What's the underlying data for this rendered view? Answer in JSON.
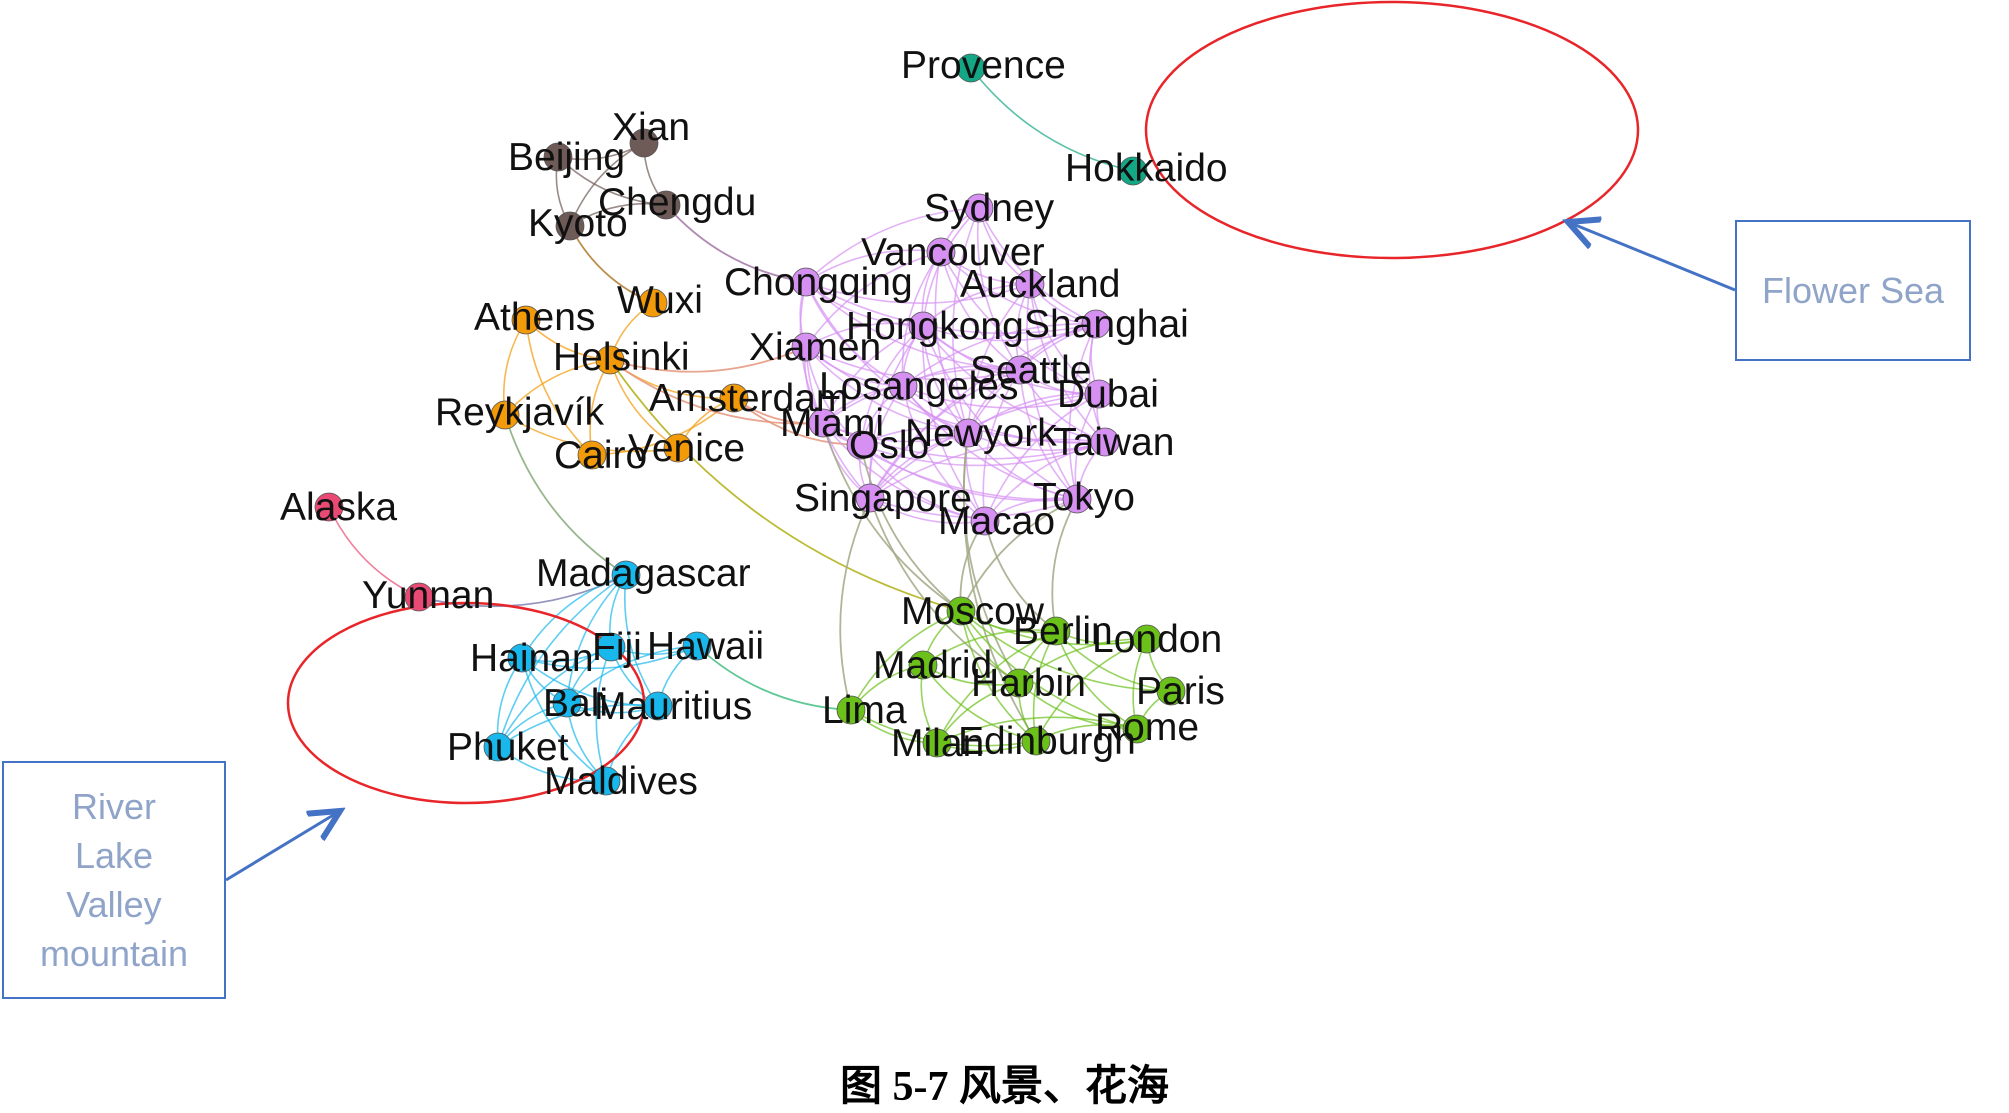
{
  "colors": {
    "cluster_brown": "#6E5A56",
    "cluster_orange": "#F29A07",
    "cluster_purple": "#D690F2",
    "cluster_teal": "#14A785",
    "cluster_pink": "#E84A74",
    "cluster_cyan": "#19B8EC",
    "cluster_green": "#6BC11A",
    "highlight_ellipse": "#E8262A",
    "callout": "#4472C4",
    "callout_text": "#8FA4C8"
  },
  "nodes": [
    {
      "id": "Beijing",
      "label": "Beijing",
      "cluster": "brown"
    },
    {
      "id": "Xian",
      "label": "Xian",
      "cluster": "brown"
    },
    {
      "id": "Chengdu",
      "label": "Chengdu",
      "cluster": "brown"
    },
    {
      "id": "Kyoto",
      "label": "Kyoto",
      "cluster": "brown"
    },
    {
      "id": "Wuxi",
      "label": "Wuxi",
      "cluster": "orange"
    },
    {
      "id": "Athens",
      "label": "Athens",
      "cluster": "orange"
    },
    {
      "id": "Helsinki",
      "label": "Helsinki",
      "cluster": "orange"
    },
    {
      "id": "Amsterdam",
      "label": "Amsterdam",
      "cluster": "orange"
    },
    {
      "id": "Reykjavik",
      "label": "Reykjavík",
      "cluster": "orange"
    },
    {
      "id": "Cairo",
      "label": "Cairo",
      "cluster": "orange"
    },
    {
      "id": "Venice",
      "label": "Venice",
      "cluster": "orange"
    },
    {
      "id": "Provence",
      "label": "Provence",
      "cluster": "teal"
    },
    {
      "id": "Hokkaido",
      "label": "Hokkaido",
      "cluster": "teal"
    },
    {
      "id": "Sydney",
      "label": "Sydney",
      "cluster": "purple"
    },
    {
      "id": "Vancouver",
      "label": "Vancouver",
      "cluster": "purple"
    },
    {
      "id": "Chongqing",
      "label": "Chongqing",
      "cluster": "purple"
    },
    {
      "id": "Auckland",
      "label": "Auckland",
      "cluster": "purple"
    },
    {
      "id": "Hongkong",
      "label": "Hongkong",
      "cluster": "purple"
    },
    {
      "id": "Shanghai",
      "label": "Shanghai",
      "cluster": "purple"
    },
    {
      "id": "Xiamen",
      "label": "Xiamen",
      "cluster": "purple"
    },
    {
      "id": "Seattle",
      "label": "Seattle",
      "cluster": "purple"
    },
    {
      "id": "Losangeles",
      "label": "Losangeles",
      "cluster": "purple"
    },
    {
      "id": "Dubai",
      "label": "Dubai",
      "cluster": "purple"
    },
    {
      "id": "Miami",
      "label": "Miami",
      "cluster": "purple"
    },
    {
      "id": "Newyork",
      "label": "Newyork",
      "cluster": "purple"
    },
    {
      "id": "Oslo",
      "label": "Oslo",
      "cluster": "purple"
    },
    {
      "id": "Taiwan",
      "label": "Taiwan",
      "cluster": "purple"
    },
    {
      "id": "Singapore",
      "label": "Singapore",
      "cluster": "purple"
    },
    {
      "id": "Tokyo",
      "label": "Tokyo",
      "cluster": "purple"
    },
    {
      "id": "Macao",
      "label": "Macao",
      "cluster": "purple"
    },
    {
      "id": "Alaska",
      "label": "Alaska",
      "cluster": "pink"
    },
    {
      "id": "Yunnan",
      "label": "Yunnan",
      "cluster": "pink"
    },
    {
      "id": "Madagascar",
      "label": "Madagascar",
      "cluster": "cyan"
    },
    {
      "id": "Hainan",
      "label": "Hainan",
      "cluster": "cyan"
    },
    {
      "id": "Fiji",
      "label": "Fiji",
      "cluster": "cyan"
    },
    {
      "id": "Hawaii",
      "label": "Hawaii",
      "cluster": "cyan"
    },
    {
      "id": "Bali",
      "label": "Bali",
      "cluster": "cyan"
    },
    {
      "id": "Mauritius",
      "label": "Mauritius",
      "cluster": "cyan"
    },
    {
      "id": "Phuket",
      "label": "Phuket",
      "cluster": "cyan"
    },
    {
      "id": "Maldives",
      "label": "Maldives",
      "cluster": "cyan"
    },
    {
      "id": "Moscow",
      "label": "Moscow",
      "cluster": "green"
    },
    {
      "id": "Berlin",
      "label": "Berlin",
      "cluster": "green"
    },
    {
      "id": "London",
      "label": "London",
      "cluster": "green"
    },
    {
      "id": "Madrid",
      "label": "Madrid",
      "cluster": "green"
    },
    {
      "id": "Harbin",
      "label": "Harbin",
      "cluster": "green"
    },
    {
      "id": "Paris",
      "label": "Paris",
      "cluster": "green"
    },
    {
      "id": "Lima",
      "label": "Lima",
      "cluster": "green"
    },
    {
      "id": "Rome",
      "label": "Rome",
      "cluster": "green"
    },
    {
      "id": "Milan",
      "label": "Milan",
      "cluster": "green"
    },
    {
      "id": "Edinburgh",
      "label": "Edinburgh",
      "cluster": "green"
    }
  ],
  "edges": [
    [
      "Beijing",
      "Xian"
    ],
    [
      "Beijing",
      "Chengdu"
    ],
    [
      "Beijing",
      "Kyoto"
    ],
    [
      "Xian",
      "Chengdu"
    ],
    [
      "Xian",
      "Kyoto"
    ],
    [
      "Chengdu",
      "Kyoto"
    ],
    [
      "Kyoto",
      "Wuxi"
    ],
    [
      "Chengdu",
      "Chongqing"
    ],
    [
      "Provence",
      "Hokkaido"
    ],
    [
      "Alaska",
      "Yunnan"
    ],
    [
      "Yunnan",
      "Madagascar"
    ],
    [
      "Wuxi",
      "Helsinki"
    ],
    [
      "Athens",
      "Helsinki"
    ],
    [
      "Athens",
      "Reykjavik"
    ],
    [
      "Athens",
      "Cairo"
    ],
    [
      "Helsinki",
      "Reykjavik"
    ],
    [
      "Helsinki",
      "Cairo"
    ],
    [
      "Helsinki",
      "Venice"
    ],
    [
      "Helsinki",
      "Amsterdam"
    ],
    [
      "Amsterdam",
      "Venice"
    ],
    [
      "Reykjavik",
      "Venice"
    ],
    [
      "Cairo",
      "Amsterdam"
    ],
    [
      "Helsinki",
      "Xiamen"
    ],
    [
      "Helsinki",
      "Miami"
    ],
    [
      "Helsinki",
      "Moscow"
    ],
    [
      "Reykjavik",
      "Madagascar"
    ],
    [
      "Amsterdam",
      "Miami"
    ],
    [
      "Amsterdam",
      "Oslo"
    ],
    [
      "Sydney",
      "Vancouver"
    ],
    [
      "Sydney",
      "Auckland"
    ],
    [
      "Sydney",
      "Hongkong"
    ],
    [
      "Sydney",
      "Shanghai"
    ],
    [
      "Sydney",
      "Seattle"
    ],
    [
      "Sydney",
      "Chongqing"
    ],
    [
      "Sydney",
      "Newyork"
    ],
    [
      "Vancouver",
      "Chongqing"
    ],
    [
      "Vancouver",
      "Auckland"
    ],
    [
      "Vancouver",
      "Hongkong"
    ],
    [
      "Vancouver",
      "Shanghai"
    ],
    [
      "Vancouver",
      "Seattle"
    ],
    [
      "Vancouver",
      "Losangeles"
    ],
    [
      "Vancouver",
      "Dubai"
    ],
    [
      "Vancouver",
      "Newyork"
    ],
    [
      "Vancouver",
      "Xiamen"
    ],
    [
      "Chongqing",
      "Hongkong"
    ],
    [
      "Chongqing",
      "Xiamen"
    ],
    [
      "Chongqing",
      "Losangeles"
    ],
    [
      "Chongqing",
      "Seattle"
    ],
    [
      "Chongqing",
      "Shanghai"
    ],
    [
      "Chongqing",
      "Miami"
    ],
    [
      "Chongqing",
      "Newyork"
    ],
    [
      "Chongqing",
      "Auckland"
    ],
    [
      "Auckland",
      "Shanghai"
    ],
    [
      "Auckland",
      "Hongkong"
    ],
    [
      "Auckland",
      "Seattle"
    ],
    [
      "Auckland",
      "Dubai"
    ],
    [
      "Auckland",
      "Taiwan"
    ],
    [
      "Auckland",
      "Tokyo"
    ],
    [
      "Auckland",
      "Newyork"
    ],
    [
      "Hongkong",
      "Shanghai"
    ],
    [
      "Hongkong",
      "Xiamen"
    ],
    [
      "Hongkong",
      "Seattle"
    ],
    [
      "Hongkong",
      "Losangeles"
    ],
    [
      "Hongkong",
      "Newyork"
    ],
    [
      "Hongkong",
      "Taiwan"
    ],
    [
      "Hongkong",
      "Macao"
    ],
    [
      "Hongkong",
      "Singapore"
    ],
    [
      "Hongkong",
      "Tokyo"
    ],
    [
      "Hongkong",
      "Oslo"
    ],
    [
      "Hongkong",
      "Miami"
    ],
    [
      "Hongkong",
      "Dubai"
    ],
    [
      "Shanghai",
      "Seattle"
    ],
    [
      "Shanghai",
      "Dubai"
    ],
    [
      "Shanghai",
      "Taiwan"
    ],
    [
      "Shanghai",
      "Tokyo"
    ],
    [
      "Shanghai",
      "Newyork"
    ],
    [
      "Shanghai",
      "Losangeles"
    ],
    [
      "Shanghai",
      "Singapore"
    ],
    [
      "Xiamen",
      "Losangeles"
    ],
    [
      "Xiamen",
      "Miami"
    ],
    [
      "Xiamen",
      "Oslo"
    ],
    [
      "Xiamen",
      "Singapore"
    ],
    [
      "Xiamen",
      "Newyork"
    ],
    [
      "Xiamen",
      "Seattle"
    ],
    [
      "Xiamen",
      "Taiwan"
    ],
    [
      "Seattle",
      "Losangeles"
    ],
    [
      "Seattle",
      "Dubai"
    ],
    [
      "Seattle",
      "Newyork"
    ],
    [
      "Seattle",
      "Taiwan"
    ],
    [
      "Seattle",
      "Tokyo"
    ],
    [
      "Seattle",
      "Macao"
    ],
    [
      "Seattle",
      "Singapore"
    ],
    [
      "Seattle",
      "Miami"
    ],
    [
      "Losangeles",
      "Miami"
    ],
    [
      "Losangeles",
      "Newyork"
    ],
    [
      "Losangeles",
      "Oslo"
    ],
    [
      "Losangeles",
      "Dubai"
    ],
    [
      "Losangeles",
      "Taiwan"
    ],
    [
      "Losangeles",
      "Singapore"
    ],
    [
      "Losangeles",
      "Macao"
    ],
    [
      "Losangeles",
      "Tokyo"
    ],
    [
      "Dubai",
      "Newyork"
    ],
    [
      "Dubai",
      "Taiwan"
    ],
    [
      "Dubai",
      "Tokyo"
    ],
    [
      "Dubai",
      "Macao"
    ],
    [
      "Dubai",
      "Singapore"
    ],
    [
      "Miami",
      "Oslo"
    ],
    [
      "Miami",
      "Newyork"
    ],
    [
      "Miami",
      "Singapore"
    ],
    [
      "Miami",
      "Macao"
    ],
    [
      "Miami",
      "Tokyo"
    ],
    [
      "Miami",
      "Taiwan"
    ],
    [
      "Newyork",
      "Oslo"
    ],
    [
      "Newyork",
      "Taiwan"
    ],
    [
      "Newyork",
      "Singapore"
    ],
    [
      "Newyork",
      "Macao"
    ],
    [
      "Newyork",
      "Tokyo"
    ],
    [
      "Oslo",
      "Singapore"
    ],
    [
      "Oslo",
      "Macao"
    ],
    [
      "Oslo",
      "Taiwan"
    ],
    [
      "Oslo",
      "Tokyo"
    ],
    [
      "Taiwan",
      "Tokyo"
    ],
    [
      "Taiwan",
      "Macao"
    ],
    [
      "Taiwan",
      "Singapore"
    ],
    [
      "Singapore",
      "Macao"
    ],
    [
      "Singapore",
      "Tokyo"
    ],
    [
      "Tokyo",
      "Macao"
    ],
    [
      "Singapore",
      "Lima"
    ],
    [
      "Singapore",
      "Harbin"
    ],
    [
      "Macao",
      "Moscow"
    ],
    [
      "Macao",
      "Berlin"
    ],
    [
      "Tokyo",
      "Berlin"
    ],
    [
      "Tokyo",
      "Moscow"
    ],
    [
      "Oslo",
      "Moscow"
    ],
    [
      "Newyork",
      "Edinburgh"
    ],
    [
      "Miami",
      "Moscow"
    ],
    [
      "Newyork",
      "Harbin"
    ],
    [
      "Madagascar",
      "Hainan"
    ],
    [
      "Madagascar",
      "Fiji"
    ],
    [
      "Madagascar",
      "Bali"
    ],
    [
      "Madagascar",
      "Phuket"
    ],
    [
      "Madagascar",
      "Mauritius"
    ],
    [
      "Hainan",
      "Fiji"
    ],
    [
      "Hainan",
      "Bali"
    ],
    [
      "Hainan",
      "Phuket"
    ],
    [
      "Hainan",
      "Maldives"
    ],
    [
      "Hainan",
      "Mauritius"
    ],
    [
      "Hainan",
      "Hawaii"
    ],
    [
      "Fiji",
      "Hawaii"
    ],
    [
      "Fiji",
      "Bali"
    ],
    [
      "Fiji",
      "Mauritius"
    ],
    [
      "Fiji",
      "Maldives"
    ],
    [
      "Fiji",
      "Phuket"
    ],
    [
      "Hawaii",
      "Mauritius"
    ],
    [
      "Hawaii",
      "Bali"
    ],
    [
      "Hawaii",
      "Lima"
    ],
    [
      "Bali",
      "Mauritius"
    ],
    [
      "Bali",
      "Phuket"
    ],
    [
      "Bali",
      "Maldives"
    ],
    [
      "Mauritius",
      "Phuket"
    ],
    [
      "Mauritius",
      "Maldives"
    ],
    [
      "Phuket",
      "Maldives"
    ],
    [
      "Moscow",
      "Berlin"
    ],
    [
      "Moscow",
      "London"
    ],
    [
      "Moscow",
      "Madrid"
    ],
    [
      "Moscow",
      "Harbin"
    ],
    [
      "Moscow",
      "Paris"
    ],
    [
      "Moscow",
      "Rome"
    ],
    [
      "Moscow",
      "Edinburgh"
    ],
    [
      "Moscow",
      "Lima"
    ],
    [
      "Berlin",
      "London"
    ],
    [
      "Berlin",
      "Madrid"
    ],
    [
      "Berlin",
      "Harbin"
    ],
    [
      "Berlin",
      "Paris"
    ],
    [
      "Berlin",
      "Rome"
    ],
    [
      "Berlin",
      "Milan"
    ],
    [
      "Berlin",
      "Edinburgh"
    ],
    [
      "London",
      "Paris"
    ],
    [
      "London",
      "Rome"
    ],
    [
      "London",
      "Harbin"
    ],
    [
      "London",
      "Edinburgh"
    ],
    [
      "Madrid",
      "Harbin"
    ],
    [
      "Madrid",
      "Lima"
    ],
    [
      "Madrid",
      "Milan"
    ],
    [
      "Madrid",
      "Edinburgh"
    ],
    [
      "Harbin",
      "Milan"
    ],
    [
      "Harbin",
      "Edinburgh"
    ],
    [
      "Harbin",
      "Rome"
    ],
    [
      "Paris",
      "Rome"
    ],
    [
      "Rome",
      "Edinburgh"
    ],
    [
      "Rome",
      "Milan"
    ],
    [
      "Lima",
      "Milan"
    ],
    [
      "Lima",
      "Edinburgh"
    ],
    [
      "Milan",
      "Edinburgh"
    ]
  ],
  "highlights": [
    {
      "name": "flower-sea-group",
      "nodes": [
        "Provence",
        "Hokkaido"
      ]
    },
    {
      "name": "river-lake-group",
      "nodes": [
        "Alaska",
        "Yunnan"
      ]
    }
  ],
  "callouts": {
    "flower_sea": {
      "text": "Flower Sea"
    },
    "river_lake": {
      "lines": [
        "River",
        "Lake",
        "Valley",
        "mountain"
      ]
    }
  },
  "caption": "图 5-7  风景、花海"
}
